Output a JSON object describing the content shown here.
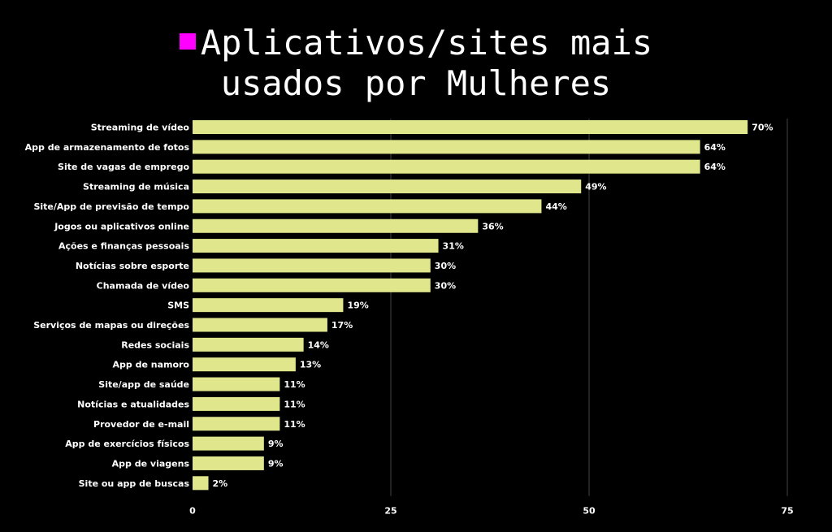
{
  "title_line1": "Aplicativos/sites mais",
  "title_line2": "usados por Mulheres",
  "colors": {
    "bar": "#dfe68b",
    "marker": "#ff00ff",
    "grid": "#444444",
    "background": "#000000"
  },
  "chart_data": {
    "type": "bar",
    "orientation": "horizontal",
    "categories": [
      "Streaming de vídeo",
      "App de armazenamento de fotos",
      "Site de vagas de emprego",
      "Streaming de música",
      "Site/App de previsão de tempo",
      "Jogos ou aplicativos online",
      "Ações e finanças pessoais",
      "Notícias sobre esporte",
      "Chamada de vídeo",
      "SMS",
      "Serviços de mapas ou direções",
      "Redes sociais",
      "App de namoro",
      "Site/app de saúde",
      "Notícias e atualidades",
      "Provedor de e-mail",
      "App de exercícios físicos",
      "App de viagens",
      "Site ou app de buscas"
    ],
    "values": [
      70,
      64,
      64,
      49,
      44,
      36,
      31,
      30,
      30,
      19,
      17,
      14,
      13,
      11,
      11,
      11,
      9,
      9,
      2
    ],
    "value_labels": [
      "70%",
      "64%",
      "64%",
      "49%",
      "44%",
      "36%",
      "31%",
      "30%",
      "30%",
      "19%",
      "17%",
      "14%",
      "13%",
      "11%",
      "11%",
      "11%",
      "9%",
      "9%",
      "2%"
    ],
    "xlim": [
      0,
      75
    ],
    "xticks": [
      0,
      25,
      50,
      75
    ],
    "xtick_labels": [
      "0",
      "25",
      "50",
      "75"
    ],
    "grid": true
  }
}
